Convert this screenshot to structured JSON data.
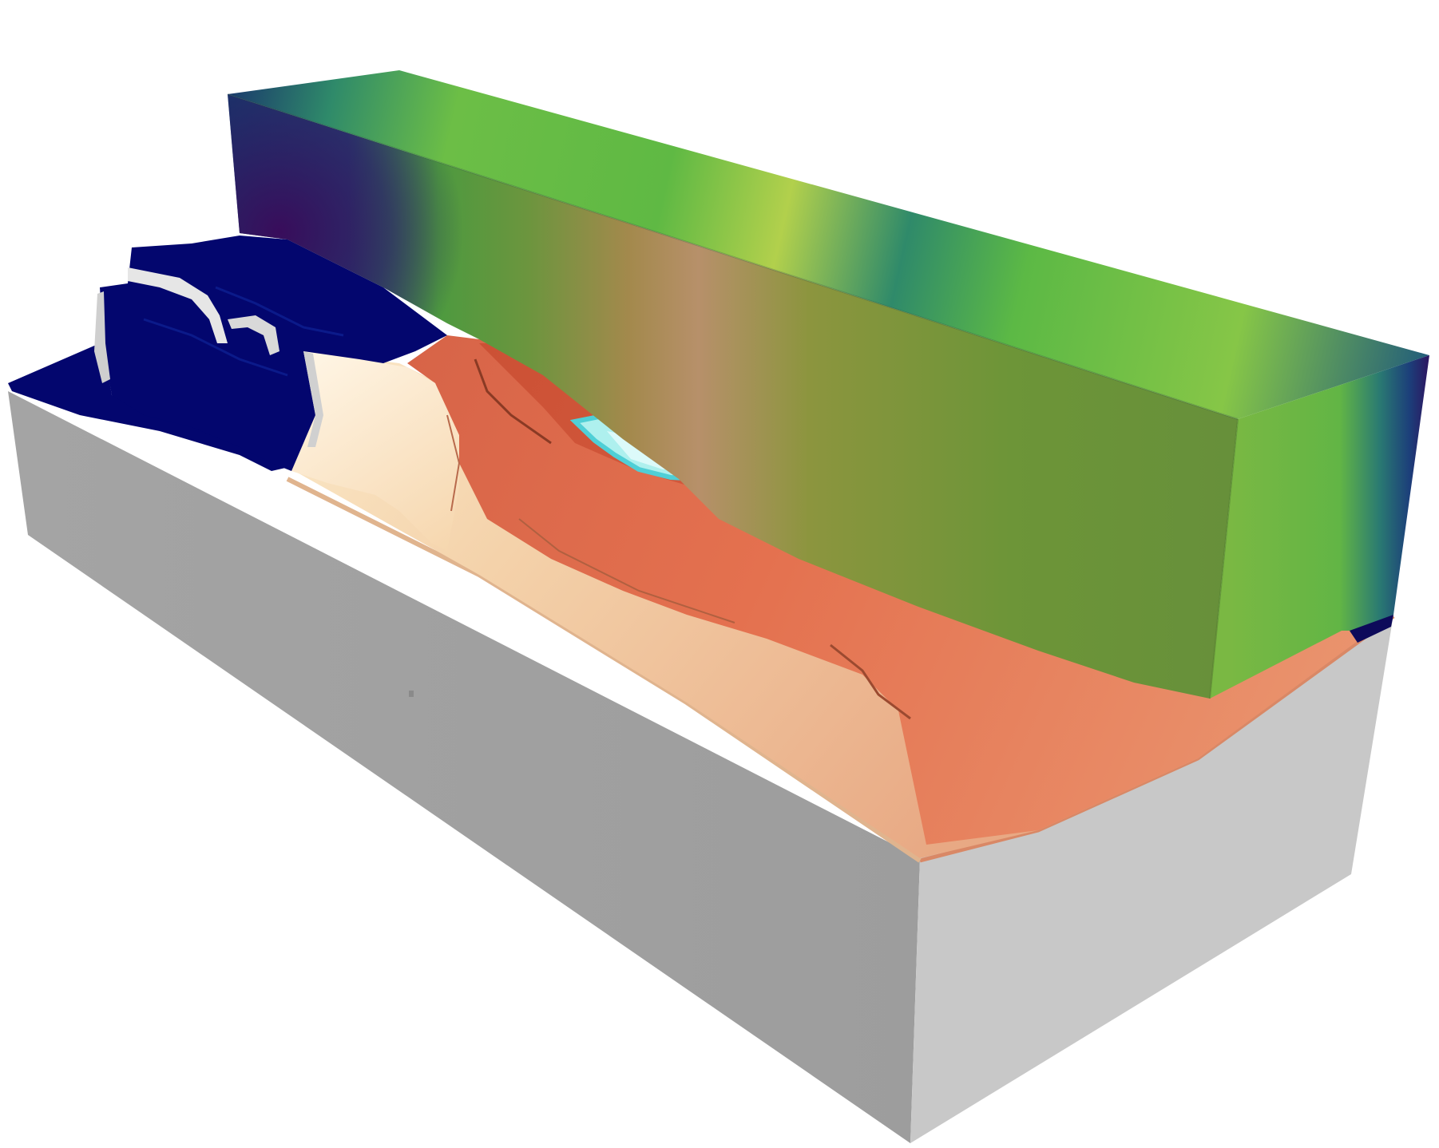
{
  "scene": {
    "colors": {
      "background": "#ffffff",
      "base_front": "#a0a0a0",
      "base_right": "#c8c8c8",
      "deep_blue": "#03066e",
      "blue_highlight": "#0a1285",
      "white_cliff": "#e6e6e6",
      "cream": "#f5dcb2",
      "light_tan": "#eab894",
      "orange": "#e58060",
      "red_orange": "#cf5038",
      "cyan_patch": "#aef0ee",
      "field_dark_blue": "#15386b",
      "field_purple": "#3e0e5c",
      "field_green": "#5fbd40",
      "field_yellow": "#cfd450",
      "field_olive": "#6e9638",
      "field_end_green": "#7ab843"
    }
  }
}
